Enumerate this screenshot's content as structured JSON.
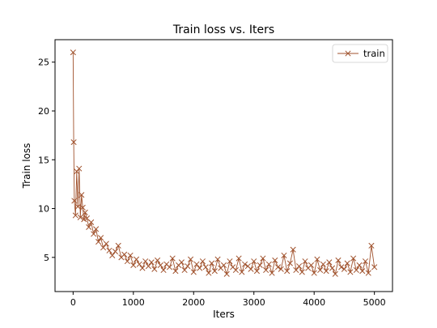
{
  "chart_data": {
    "type": "line",
    "title": "Train loss  vs. Iters",
    "xlabel": "Iters",
    "ylabel": "Train loss",
    "xlim": [
      -300,
      5300
    ],
    "ylim": [
      1.5,
      27.3
    ],
    "xticks": [
      0,
      1000,
      2000,
      3000,
      4000,
      5000
    ],
    "yticks": [
      5,
      10,
      15,
      20,
      25
    ],
    "grid": false,
    "legend_position": "top-right",
    "marker": "x",
    "series": [
      {
        "name": "train",
        "color": "#a0522d",
        "x": [
          0,
          10,
          20,
          40,
          60,
          80,
          100,
          120,
          140,
          160,
          180,
          200,
          230,
          260,
          300,
          340,
          380,
          420,
          460,
          500,
          550,
          600,
          650,
          700,
          750,
          800,
          850,
          900,
          950,
          1000,
          1050,
          1100,
          1150,
          1200,
          1250,
          1300,
          1350,
          1400,
          1450,
          1500,
          1550,
          1600,
          1650,
          1700,
          1750,
          1800,
          1850,
          1900,
          1950,
          2000,
          2050,
          2100,
          2150,
          2200,
          2250,
          2300,
          2350,
          2400,
          2450,
          2500,
          2550,
          2600,
          2650,
          2700,
          2750,
          2800,
          2850,
          2900,
          2950,
          3000,
          3050,
          3100,
          3150,
          3200,
          3250,
          3300,
          3350,
          3400,
          3450,
          3500,
          3550,
          3600,
          3650,
          3700,
          3750,
          3800,
          3850,
          3900,
          3950,
          4000,
          4050,
          4100,
          4150,
          4200,
          4250,
          4300,
          4350,
          4400,
          4450,
          4500,
          4550,
          4600,
          4650,
          4700,
          4750,
          4800,
          4850,
          4900,
          4950,
          5000
        ],
        "y": [
          26.0,
          16.8,
          10.8,
          9.3,
          13.8,
          10.2,
          14.1,
          9.1,
          11.4,
          10.1,
          8.9,
          9.6,
          9.0,
          8.1,
          8.6,
          7.4,
          7.9,
          6.6,
          7.0,
          6.0,
          6.4,
          5.7,
          5.2,
          5.6,
          6.2,
          5.0,
          5.3,
          4.6,
          5.2,
          4.2,
          4.8,
          4.3,
          3.9,
          4.6,
          4.1,
          4.5,
          3.8,
          4.7,
          4.2,
          3.7,
          4.3,
          4.0,
          4.9,
          3.6,
          4.2,
          4.5,
          3.7,
          4.1,
          4.8,
          3.5,
          4.3,
          3.9,
          4.6,
          4.0,
          3.4,
          4.4,
          3.6,
          4.8,
          3.9,
          4.2,
          3.3,
          4.6,
          4.0,
          3.7,
          4.9,
          3.5,
          4.3,
          4.1,
          3.8,
          4.6,
          3.6,
          4.2,
          4.9,
          3.7,
          4.3,
          3.4,
          4.7,
          4.0,
          3.8,
          5.2,
          3.6,
          4.4,
          5.8,
          3.7,
          4.1,
          3.5,
          4.6,
          3.9,
          4.2,
          3.4,
          4.8,
          3.7,
          4.3,
          3.6,
          4.5,
          3.9,
          3.3,
          4.7,
          4.0,
          3.8,
          4.4,
          3.5,
          4.9,
          3.7,
          4.2,
          3.6,
          4.6,
          3.4,
          6.2,
          4.0
        ]
      }
    ]
  }
}
